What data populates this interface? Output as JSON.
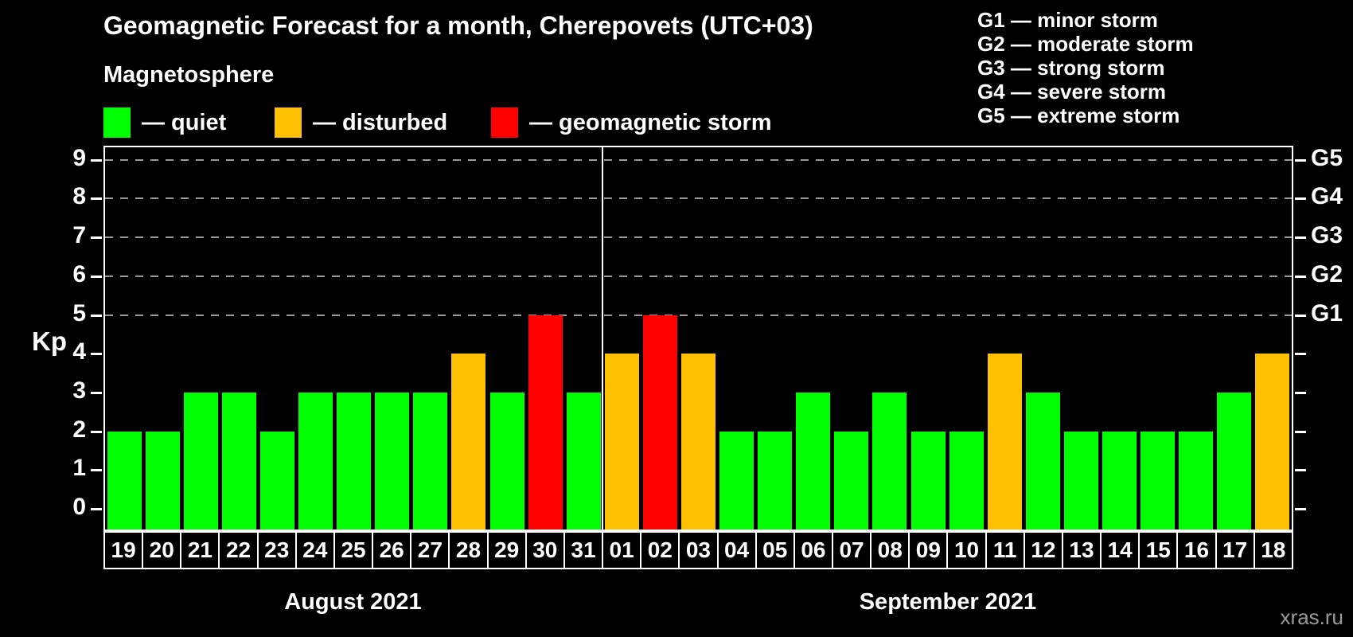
{
  "title": "Geomagnetic Forecast for a month, Cherepovets (UTC+03)",
  "subtitle": "Magnetosphere",
  "colors": {
    "quiet": "#00ff00",
    "disturbed": "#ffc000",
    "storm": "#ff0000",
    "grid": "#9a9a9a",
    "axis": "#ffffff",
    "watermark_text": "#999999",
    "background": "#000000"
  },
  "legend": {
    "items": [
      {
        "state": "quiet",
        "label": "— quiet",
        "color": "#00ff00"
      },
      {
        "state": "disturbed",
        "label": "— disturbed",
        "color": "#ffc000"
      },
      {
        "state": "storm",
        "label": "— geomagnetic storm",
        "color": "#ff0000"
      }
    ],
    "x_positions": [
      130,
      345,
      617
    ]
  },
  "g_legend": [
    "G1 — minor storm",
    "G2 — moderate storm",
    "G3 — strong storm",
    "G4 — severe storm",
    "G5 — extreme storm"
  ],
  "watermark": "xras.ru",
  "chart_data": {
    "type": "bar",
    "title": "Geomagnetic Forecast for a month, Cherepovets (UTC+03)",
    "xlabel": "",
    "ylabel": "Kp",
    "ylim": [
      0,
      9
    ],
    "grid": "dashed horizontal at Kp 5-9 only",
    "y_ticks": [
      0,
      1,
      2,
      3,
      4,
      5,
      6,
      7,
      8,
      9
    ],
    "right_axis_labels": [
      {
        "kp": 5,
        "label": "G1"
      },
      {
        "kp": 6,
        "label": "G2"
      },
      {
        "kp": 7,
        "label": "G3"
      },
      {
        "kp": 8,
        "label": "G4"
      },
      {
        "kp": 9,
        "label": "G5"
      }
    ],
    "gridlines_at": [
      5,
      6,
      7,
      8,
      9
    ],
    "months": [
      {
        "label": "August 2021",
        "days": 13
      },
      {
        "label": "September 2021",
        "days": 18
      }
    ],
    "categories": [
      "19",
      "20",
      "21",
      "22",
      "23",
      "24",
      "25",
      "26",
      "27",
      "28",
      "29",
      "30",
      "31",
      "01",
      "02",
      "03",
      "04",
      "05",
      "06",
      "07",
      "08",
      "09",
      "10",
      "11",
      "12",
      "13",
      "14",
      "15",
      "16",
      "17",
      "18"
    ],
    "values": [
      2,
      2,
      3,
      3,
      2,
      3,
      3,
      3,
      3,
      4,
      3,
      5,
      3,
      4,
      5,
      4,
      2,
      2,
      3,
      2,
      3,
      2,
      2,
      4,
      3,
      2,
      2,
      2,
      2,
      3,
      4
    ],
    "states": [
      "quiet",
      "quiet",
      "quiet",
      "quiet",
      "quiet",
      "quiet",
      "quiet",
      "quiet",
      "quiet",
      "disturbed",
      "quiet",
      "storm",
      "quiet",
      "disturbed",
      "storm",
      "disturbed",
      "quiet",
      "quiet",
      "quiet",
      "quiet",
      "quiet",
      "quiet",
      "quiet",
      "disturbed",
      "quiet",
      "quiet",
      "quiet",
      "quiet",
      "quiet",
      "quiet",
      "disturbed"
    ]
  }
}
